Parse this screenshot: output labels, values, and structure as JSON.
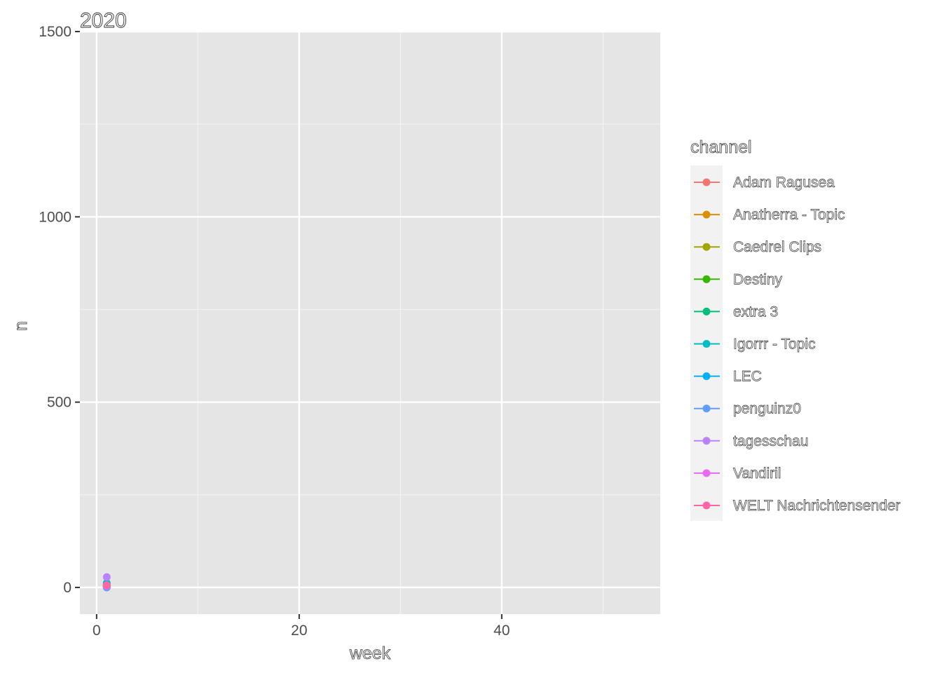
{
  "chart_data": {
    "type": "line",
    "title": "2020",
    "xlabel": "week",
    "ylabel": "n",
    "xlim": [
      -1.65,
      55.65
    ],
    "ylim": [
      -72,
      1500
    ],
    "x_ticks": [
      0,
      20,
      40
    ],
    "x_tick_labels": [
      "0",
      "20",
      "40"
    ],
    "x_minor": [
      10,
      30,
      50
    ],
    "y_ticks": [
      0,
      500,
      1000,
      1500
    ],
    "y_tick_labels": [
      "0",
      "500",
      "1000",
      "1500"
    ],
    "y_minor": [
      250,
      750,
      1250
    ],
    "grid": true,
    "legend_title": "channel",
    "legend_position": "right",
    "panel_color": "#e5e5e5",
    "series": [
      {
        "name": "Adam Ragusea",
        "color": "#F8766D",
        "x": [
          1
        ],
        "y": [
          2
        ]
      },
      {
        "name": "Anatherra - Topic",
        "color": "#D89000",
        "x": [
          1
        ],
        "y": [
          1
        ]
      },
      {
        "name": "Caedrel Clips",
        "color": "#A3A500",
        "x": [
          1
        ],
        "y": [
          3
        ]
      },
      {
        "name": "Destiny",
        "color": "#39B600",
        "x": [
          1
        ],
        "y": [
          5
        ]
      },
      {
        "name": "extra 3",
        "color": "#00BF7D",
        "x": [
          1
        ],
        "y": [
          8
        ]
      },
      {
        "name": "Igorrr - Topic",
        "color": "#00BFC4",
        "x": [
          1
        ],
        "y": [
          12
        ]
      },
      {
        "name": "LEC",
        "color": "#00B0F6",
        "x": [
          1
        ],
        "y": [
          2
        ]
      },
      {
        "name": "penguinz0",
        "color": "#619CFF",
        "x": [
          1
        ],
        "y": [
          0
        ]
      },
      {
        "name": "tagesschau",
        "color": "#B983FF",
        "x": [
          1
        ],
        "y": [
          28
        ]
      },
      {
        "name": "Vandiril",
        "color": "#E76BF3",
        "x": [
          1
        ],
        "y": [
          4
        ]
      },
      {
        "name": "WELT Nachrichtensender",
        "color": "#FF67A4",
        "x": [
          1
        ],
        "y": [
          6
        ]
      }
    ]
  }
}
